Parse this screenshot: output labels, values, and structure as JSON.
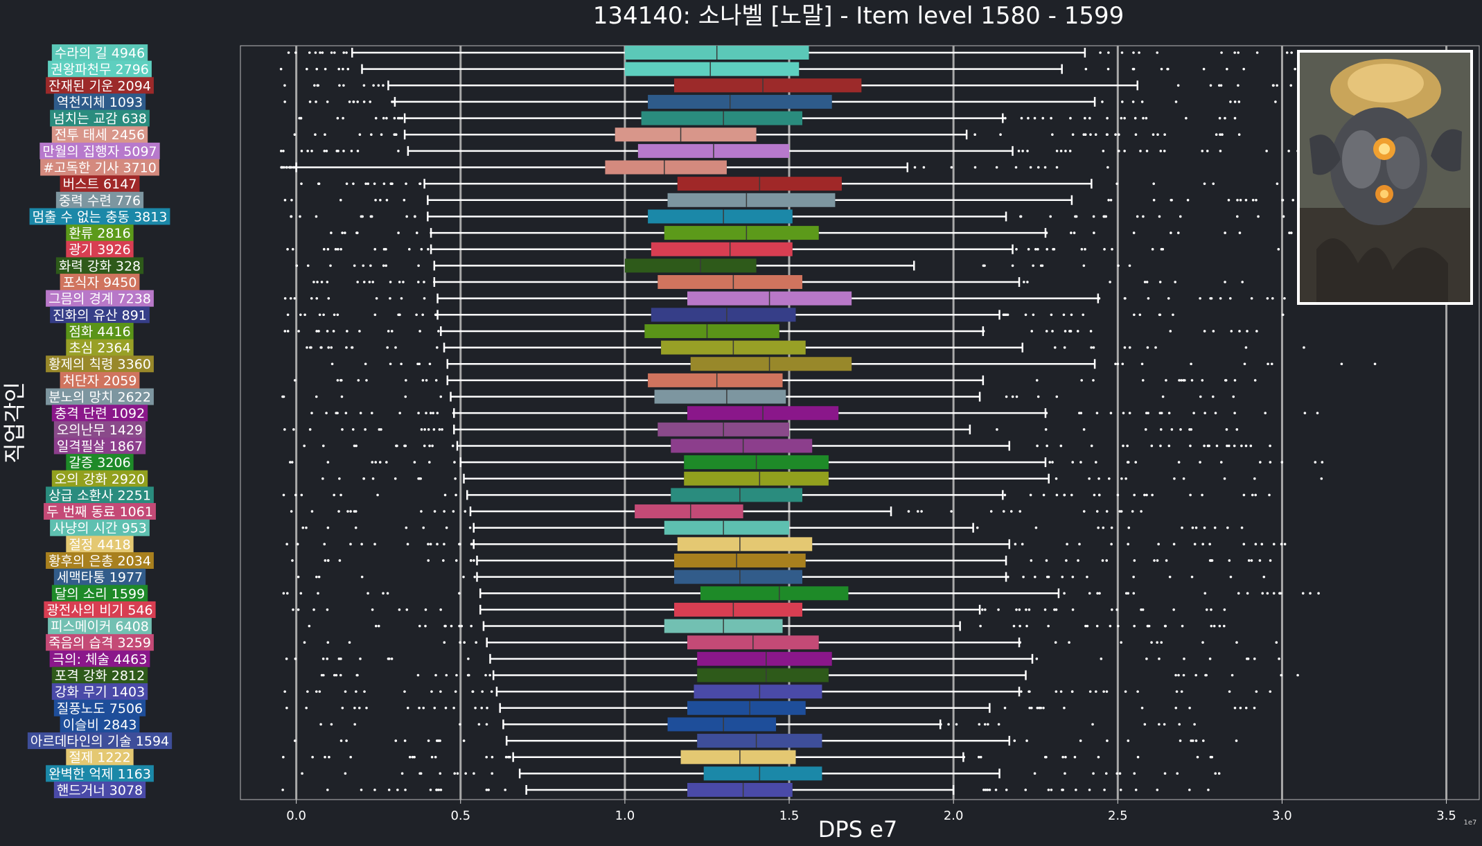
{
  "chart_data": {
    "type": "box",
    "title": "134140: 소나벨 [노말] - Item level 1580 - 1599",
    "xlabel": "DPS e7",
    "ylabel": "직업각인",
    "offset_text": "1e7",
    "xlim": [
      -0.17,
      3.6
    ],
    "xticks": [
      0.0,
      0.5,
      1.0,
      1.5,
      2.0,
      2.5,
      3.0,
      3.5
    ],
    "xtick_labels": [
      "0.0",
      "0.5",
      "1.0",
      "1.5",
      "2.0",
      "2.5",
      "3.0",
      "3.5"
    ],
    "grid": "vertical",
    "legend": "none",
    "image_panel": "top-right",
    "rows": [
      {
        "name": "수라의 길",
        "count": 4946,
        "color": "#5bc8b8",
        "box": [
          0.17,
          1.0,
          1.28,
          1.56,
          2.4
        ]
      },
      {
        "name": "권왕파천무",
        "count": 2796,
        "color": "#5ecfbf",
        "box": [
          0.2,
          1.0,
          1.26,
          1.53,
          2.33
        ]
      },
      {
        "name": "잔재된 기운",
        "count": 2094,
        "color": "#9c2a2a",
        "box": [
          0.28,
          1.15,
          1.42,
          1.72,
          2.56
        ]
      },
      {
        "name": "역천지체",
        "count": 1093,
        "color": "#2e5b8a",
        "box": [
          0.3,
          1.07,
          1.32,
          1.63,
          2.43
        ]
      },
      {
        "name": "넘치는 교감",
        "count": 638,
        "color": "#2a8c7e",
        "box": [
          0.33,
          1.05,
          1.3,
          1.54,
          2.15
        ]
      },
      {
        "name": "전투 태세",
        "count": 2456,
        "color": "#d8968a",
        "box": [
          0.33,
          0.97,
          1.17,
          1.4,
          2.04
        ]
      },
      {
        "name": "만월의 집행자",
        "count": 5097,
        "color": "#b779cc",
        "box": [
          0.34,
          1.04,
          1.27,
          1.5,
          2.18
        ]
      },
      {
        "name": "#고독한 기사",
        "count": 3710,
        "color": "#d48a7e",
        "box": [
          0.0,
          0.94,
          1.12,
          1.31,
          1.86
        ]
      },
      {
        "name": "버스트",
        "count": 6147,
        "color": "#a02828",
        "box": [
          0.39,
          1.16,
          1.41,
          1.66,
          2.42
        ]
      },
      {
        "name": "중력 수련",
        "count": 776,
        "color": "#7d96a0",
        "box": [
          0.4,
          1.13,
          1.37,
          1.64,
          2.36
        ]
      },
      {
        "name": "멈출 수 없는 충동",
        "count": 3813,
        "color": "#1b88a8",
        "box": [
          0.4,
          1.07,
          1.3,
          1.51,
          2.16
        ]
      },
      {
        "name": "환류",
        "count": 2816,
        "color": "#5c9a1a",
        "box": [
          0.41,
          1.12,
          1.37,
          1.59,
          2.28
        ]
      },
      {
        "name": "광기",
        "count": 3926,
        "color": "#d83e52",
        "box": [
          0.41,
          1.08,
          1.32,
          1.51,
          2.18
        ]
      },
      {
        "name": "화력 강화",
        "count": 328,
        "color": "#2e5a1a",
        "box": [
          0.42,
          1.0,
          1.23,
          1.4,
          1.88
        ]
      },
      {
        "name": "포식자",
        "count": 9450,
        "color": "#d0745e",
        "box": [
          0.42,
          1.1,
          1.33,
          1.54,
          2.2
        ]
      },
      {
        "name": "그믐의 경계",
        "count": 7238,
        "color": "#b878c8",
        "box": [
          0.43,
          1.19,
          1.44,
          1.69,
          2.44
        ]
      },
      {
        "name": "진화의 유산",
        "count": 891,
        "color": "#363e88",
        "box": [
          0.43,
          1.08,
          1.31,
          1.52,
          2.14
        ]
      },
      {
        "name": "점화",
        "count": 4416,
        "color": "#5a9418",
        "box": [
          0.44,
          1.06,
          1.25,
          1.47,
          2.09
        ]
      },
      {
        "name": "초심",
        "count": 2364,
        "color": "#98a026",
        "box": [
          0.45,
          1.11,
          1.33,
          1.55,
          2.21
        ]
      },
      {
        "name": "황제의 칙령",
        "count": 3360,
        "color": "#98882a",
        "box": [
          0.46,
          1.2,
          1.44,
          1.69,
          2.43
        ]
      },
      {
        "name": "처단자",
        "count": 2059,
        "color": "#d0745e",
        "box": [
          0.46,
          1.07,
          1.28,
          1.48,
          2.09
        ]
      },
      {
        "name": "분노의 망치",
        "count": 2622,
        "color": "#7d96a0",
        "box": [
          0.47,
          1.09,
          1.31,
          1.49,
          2.08
        ]
      },
      {
        "name": "충격 단련",
        "count": 1092,
        "color": "#8a178a",
        "box": [
          0.48,
          1.19,
          1.42,
          1.65,
          2.28
        ]
      },
      {
        "name": "오의난무",
        "count": 1429,
        "color": "#8a4a8a",
        "box": [
          0.48,
          1.1,
          1.3,
          1.5,
          2.05
        ]
      },
      {
        "name": "일격필살",
        "count": 1867,
        "color": "#8c3e8c",
        "box": [
          0.49,
          1.14,
          1.36,
          1.57,
          2.17
        ]
      },
      {
        "name": "갈증",
        "count": 3206,
        "color": "#1e8a28",
        "box": [
          0.5,
          1.18,
          1.4,
          1.62,
          2.28
        ]
      },
      {
        "name": "오의 강화",
        "count": 2920,
        "color": "#92a01e",
        "box": [
          0.51,
          1.18,
          1.41,
          1.62,
          2.29
        ]
      },
      {
        "name": "상급 소환사",
        "count": 2251,
        "color": "#2a8c7e",
        "box": [
          0.52,
          1.14,
          1.35,
          1.54,
          2.15
        ]
      },
      {
        "name": "두 번째 동료",
        "count": 1061,
        "color": "#c44a76",
        "box": [
          0.53,
          1.03,
          1.2,
          1.36,
          1.81
        ]
      },
      {
        "name": "사냥의 시간",
        "count": 953,
        "color": "#5ec0b0",
        "box": [
          0.54,
          1.12,
          1.3,
          1.5,
          2.06
        ]
      },
      {
        "name": "절정",
        "count": 4418,
        "color": "#e4c872",
        "box": [
          0.54,
          1.16,
          1.35,
          1.57,
          2.17
        ]
      },
      {
        "name": "황후의 은총",
        "count": 2034,
        "color": "#a8801e",
        "box": [
          0.55,
          1.15,
          1.34,
          1.55,
          2.16
        ]
      },
      {
        "name": "세맥타통",
        "count": 1977,
        "color": "#325c8a",
        "box": [
          0.55,
          1.15,
          1.35,
          1.54,
          2.16
        ]
      },
      {
        "name": "달의 소리",
        "count": 1599,
        "color": "#1e8a28",
        "box": [
          0.56,
          1.23,
          1.47,
          1.68,
          2.32
        ]
      },
      {
        "name": "광전사의 비기",
        "count": 546,
        "color": "#d83e52",
        "box": [
          0.56,
          1.15,
          1.33,
          1.54,
          2.08
        ]
      },
      {
        "name": "피스메이커",
        "count": 6408,
        "color": "#72c0b2",
        "box": [
          0.57,
          1.12,
          1.3,
          1.48,
          2.02
        ]
      },
      {
        "name": "죽음의 습격",
        "count": 3259,
        "color": "#c44a76",
        "box": [
          0.58,
          1.19,
          1.39,
          1.59,
          2.2
        ]
      },
      {
        "name": "극의: 체술",
        "count": 4463,
        "color": "#8a178a",
        "box": [
          0.59,
          1.22,
          1.43,
          1.63,
          2.24
        ]
      },
      {
        "name": "포격 강화",
        "count": 2812,
        "color": "#2e5a1a",
        "box": [
          0.6,
          1.22,
          1.43,
          1.62,
          2.22
        ]
      },
      {
        "name": "강화 무기",
        "count": 1403,
        "color": "#4a4aa8",
        "box": [
          0.61,
          1.21,
          1.41,
          1.6,
          2.2
        ]
      },
      {
        "name": "질풍노도",
        "count": 7506,
        "color": "#1e4e9a",
        "box": [
          0.62,
          1.19,
          1.38,
          1.55,
          2.11
        ]
      },
      {
        "name": "이슬비",
        "count": 2843,
        "color": "#1e4e9a",
        "box": [
          0.63,
          1.13,
          1.3,
          1.46,
          1.96
        ]
      },
      {
        "name": "아르데타인의 기술",
        "count": 1594,
        "color": "#3e4e9a",
        "box": [
          0.64,
          1.22,
          1.4,
          1.6,
          2.17
        ]
      },
      {
        "name": "절제",
        "count": 1222,
        "color": "#e4c872",
        "box": [
          0.66,
          1.17,
          1.35,
          1.52,
          2.03
        ]
      },
      {
        "name": "완벽한 억제",
        "count": 1163,
        "color": "#1b88a8",
        "box": [
          0.68,
          1.24,
          1.41,
          1.6,
          2.14
        ]
      },
      {
        "name": "핸드거너",
        "count": 3078,
        "color": "#4a4aa8",
        "box": [
          0.7,
          1.19,
          1.36,
          1.51,
          2.0
        ]
      }
    ]
  }
}
